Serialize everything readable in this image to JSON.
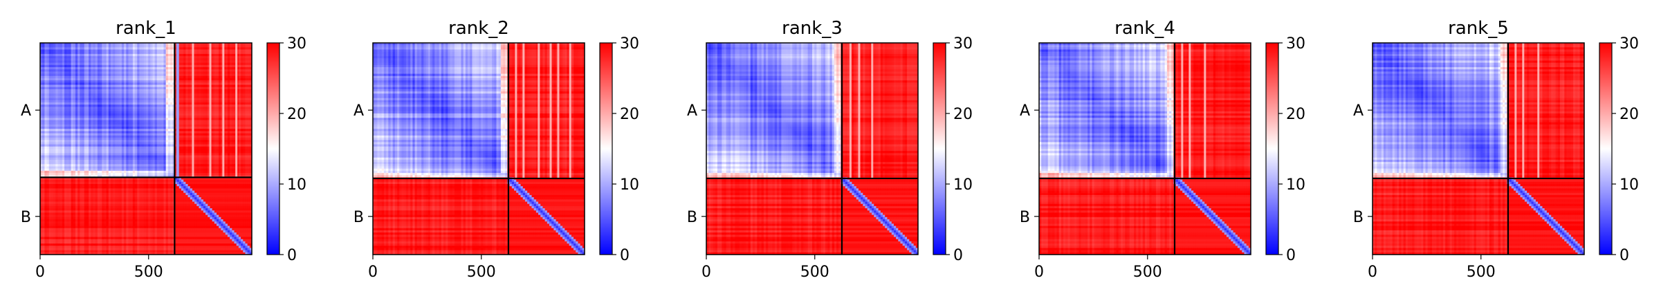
{
  "chart_data": {
    "type": "heatmap",
    "panels": [
      {
        "title": "rank_1",
        "boundary": 620,
        "interface_a_cols": [
          628,
          631
        ],
        "streak_cols": [
          700,
          780,
          840,
          900
        ],
        "noise_seed": 11
      },
      {
        "title": "rank_2",
        "boundary": 625,
        "interface_a_cols": [],
        "streak_cols": [
          655,
          690,
          760,
          815,
          850,
          905
        ],
        "noise_seed": 23
      },
      {
        "title": "rank_3",
        "boundary": 625,
        "interface_a_cols": [],
        "streak_cols": [
          660,
          700,
          760
        ],
        "noise_seed": 37
      },
      {
        "title": "rank_4",
        "boundary": 625,
        "interface_a_cols": [],
        "streak_cols": [
          655,
          690,
          760
        ],
        "noise_seed": 41
      },
      {
        "title": "rank_5",
        "boundary": 625,
        "interface_a_cols": [],
        "streak_cols": [
          655,
          690,
          760
        ],
        "noise_seed": 53
      }
    ],
    "x_range": [
      0,
      976
    ],
    "y_range": [
      0,
      976
    ],
    "x_ticks": [
      0,
      500
    ],
    "x_tick_labels": [
      "0",
      "500"
    ],
    "y_ticks": [
      310,
      800
    ],
    "y_tick_labels": [
      "A",
      "B"
    ],
    "colorbar": {
      "min": 0,
      "max": 30,
      "ticks": [
        0,
        10,
        20,
        30
      ],
      "tick_labels": [
        "0",
        "10",
        "20",
        "30"
      ]
    },
    "colormap": [
      "#0000ff",
      "#ffffff",
      "#ff0000"
    ],
    "divider_color": "#000000"
  }
}
